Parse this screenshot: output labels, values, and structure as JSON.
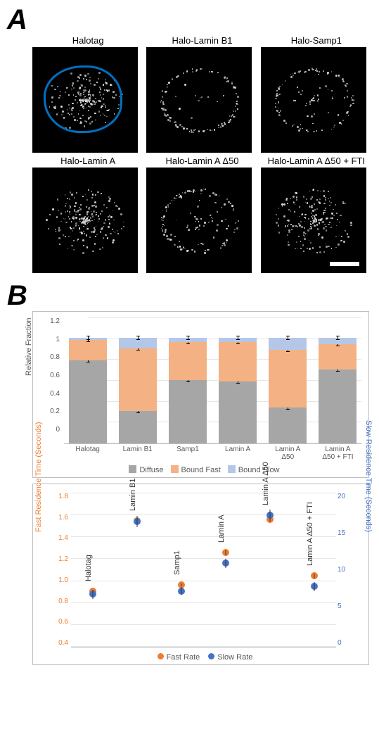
{
  "panelA": {
    "letter": "A",
    "outline_color": "#0070c0",
    "speckle_color": "#dcdcdc",
    "images": [
      {
        "title": "Halotag",
        "outline": true,
        "rim_strength": 0.1,
        "interior": 0.9,
        "scalebar": false
      },
      {
        "title": "Halo-Lamin B1",
        "outline": false,
        "rim_strength": 0.95,
        "interior": 0.15,
        "scalebar": false
      },
      {
        "title": "Halo-Samp1",
        "outline": false,
        "rim_strength": 0.85,
        "interior": 0.25,
        "scalebar": false
      },
      {
        "title": "Halo-Lamin A",
        "outline": false,
        "rim_strength": 0.3,
        "interior": 0.85,
        "scalebar": false
      },
      {
        "title": "Halo-Lamin A Δ50",
        "outline": false,
        "rim_strength": 0.9,
        "interior": 0.35,
        "scalebar": false
      },
      {
        "title": "Halo-Lamin A Δ50 + FTI",
        "outline": false,
        "rim_strength": 0.35,
        "interior": 0.8,
        "scalebar": true
      }
    ]
  },
  "panelB": {
    "letter": "B",
    "bar": {
      "ylabel": "Relative Fraction",
      "ylim": [
        0,
        1.2
      ],
      "ytick_step": 0.2,
      "categories": [
        "Halotag",
        "Lamin B1",
        "Samp1",
        "Lamin A",
        "Lamin A\nΔ50",
        "Lamin A\nΔ50 + FTI"
      ],
      "series": {
        "Diffuse": {
          "color": "#a6a6a6",
          "values": [
            0.79,
            0.31,
            0.6,
            0.59,
            0.34,
            0.7
          ]
        },
        "Bound Fast": {
          "color": "#f4b183",
          "values": [
            0.19,
            0.59,
            0.36,
            0.37,
            0.55,
            0.24
          ]
        },
        "Bound Slow": {
          "color": "#b4c7e7",
          "values": [
            0.02,
            0.1,
            0.04,
            0.04,
            0.11,
            0.06
          ]
        }
      },
      "legend": [
        "Diffuse",
        "Bound Fast",
        "Bound Slow"
      ]
    },
    "scatter": {
      "categories": [
        "Halotag",
        "Lamin B1",
        "Samp1",
        "Lamin A",
        "Lamin A\nΔ50",
        "Lamin A Δ50\n+ FTI"
      ],
      "left_axis": {
        "label": "Fast Residence Time (Seconds)",
        "color": "#ed7d31",
        "lim": [
          0.4,
          1.8
        ],
        "tick_step": 0.2
      },
      "right_axis": {
        "label": "Slow Residence Time (Seconds)",
        "color": "#4472c4",
        "lim": [
          0,
          20
        ],
        "tick_step": 5
      },
      "fast": {
        "color": "#ed7d31",
        "values": [
          0.9,
          1.54,
          0.96,
          1.25,
          1.55,
          1.04
        ],
        "err": [
          0.01,
          0.02,
          0.01,
          0.02,
          0.02,
          0.02
        ]
      },
      "slow": {
        "color": "#4472c4",
        "values": [
          6.8,
          16.2,
          7.2,
          10.8,
          17.0,
          7.8
        ],
        "err": [
          0.6,
          0.7,
          0.5,
          0.6,
          0.7,
          0.6
        ]
      },
      "legend": {
        "fast": "Fast Rate",
        "slow": "Slow Rate"
      }
    }
  }
}
